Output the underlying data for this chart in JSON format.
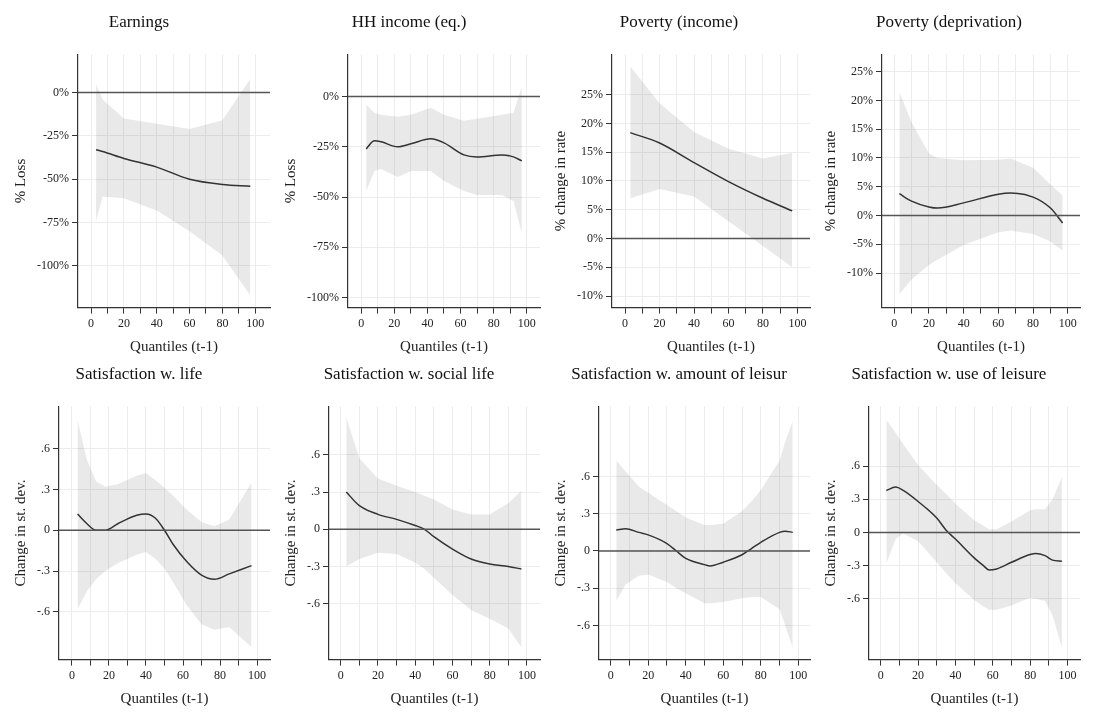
{
  "chart_data": [
    {
      "type": "line",
      "title": "Earnings",
      "xlabel": "Quantiles (t-1)",
      "ylabel": "% Loss",
      "xlim": [
        -8,
        109
      ],
      "xticks": [
        0,
        {
          "value": 10,
          "label": null
        },
        20,
        {
          "value": 30,
          "label": null
        },
        40,
        {
          "value": 50,
          "label": null
        },
        60,
        {
          "value": 70,
          "label": null
        },
        80,
        {
          "value": 90,
          "label": null
        },
        100
      ],
      "ylim": [
        -124,
        22
      ],
      "yticks": [
        {
          "value": 0,
          "label": "0%"
        },
        {
          "value": -25,
          "label": "-25%"
        },
        {
          "value": -50,
          "label": "-50%"
        },
        {
          "value": -75,
          "label": "-75%"
        },
        {
          "value": -100,
          "label": "-100%"
        }
      ],
      "grid": true,
      "marker": "none",
      "line_style": "solid",
      "ref_lines": [
        {
          "axis": "y",
          "value": 0,
          "color": "#555555"
        }
      ],
      "series": [
        {
          "color": "#333333",
          "x": [
            3,
            7,
            20,
            40,
            60,
            80,
            97
          ],
          "values": [
            -33,
            -34,
            -38,
            -43,
            -50,
            -53,
            -54
          ],
          "lower": [
            -74,
            -60,
            -61,
            -68,
            -80,
            -94,
            -117
          ],
          "upper": [
            5,
            -4,
            -15,
            -18,
            -21,
            -16,
            8
          ]
        }
      ]
    },
    {
      "type": "line",
      "title": "HH income (eq.)",
      "xlabel": "Quantiles (t-1)",
      "ylabel": "% Loss",
      "xlim": [
        -8,
        108
      ],
      "xticks": [
        0,
        {
          "value": 10,
          "label": null
        },
        20,
        {
          "value": 30,
          "label": null
        },
        40,
        {
          "value": 50,
          "label": null
        },
        60,
        {
          "value": 70,
          "label": null
        },
        80,
        {
          "value": 90,
          "label": null
        },
        100
      ],
      "ylim": [
        -105,
        21
      ],
      "yticks": [
        {
          "value": 0,
          "label": "0%"
        },
        {
          "value": -25,
          "label": "-25%"
        },
        {
          "value": -50,
          "label": "-50%"
        },
        {
          "value": -75,
          "label": "-75%"
        },
        {
          "value": -100,
          "label": "-100%"
        }
      ],
      "grid": true,
      "marker": "none",
      "line_style": "solid",
      "ref_lines": [
        {
          "axis": "y",
          "value": 0,
          "color": "#555555"
        }
      ],
      "series": [
        {
          "color": "#333333",
          "x": [
            3,
            8,
            12,
            22,
            30,
            42,
            50,
            62,
            70,
            85,
            92,
            97
          ],
          "values": [
            -26,
            -22,
            -22.5,
            -25,
            -23.5,
            -21,
            -23,
            -29,
            -30,
            -29,
            -30,
            -32
          ],
          "lower": [
            -47,
            -37,
            -36,
            -40,
            -37,
            -37,
            -42,
            -47,
            -49,
            -49,
            -52,
            -68
          ],
          "upper": [
            -4,
            -8,
            -9,
            -10,
            -9,
            -5.5,
            -9,
            -12,
            -11,
            -9,
            -8,
            5
          ]
        }
      ]
    },
    {
      "type": "line",
      "title": "Poverty (income)",
      "xlabel": "Quantiles (t-1)",
      "ylabel": "% change in rate",
      "xlim": [
        -7.6,
        107.3
      ],
      "xticks": [
        0,
        {
          "value": 10,
          "label": null
        },
        20,
        {
          "value": 30,
          "label": null
        },
        40,
        {
          "value": 50,
          "label": null
        },
        60,
        {
          "value": 70,
          "label": null
        },
        80,
        {
          "value": 90,
          "label": null
        },
        100
      ],
      "ylim": [
        -12,
        32
      ],
      "yticks": [
        {
          "value": 25,
          "label": "25%"
        },
        {
          "value": 20,
          "label": "20%"
        },
        {
          "value": 15,
          "label": "15%"
        },
        {
          "value": 10,
          "label": "10%"
        },
        {
          "value": 5,
          "label": "5%"
        },
        {
          "value": 0,
          "label": "0%"
        },
        {
          "value": -5,
          "label": "-5%"
        },
        {
          "value": -10,
          "label": "-10%"
        }
      ],
      "grid": true,
      "marker": "none",
      "line_style": "solid",
      "ref_lines": [
        {
          "axis": "y",
          "value": 0,
          "color": "#555555"
        }
      ],
      "series": [
        {
          "color": "#333333",
          "x": [
            3,
            20,
            40,
            60,
            80,
            97
          ],
          "values": [
            18.4,
            16.6,
            13.2,
            9.9,
            7,
            4.8
          ],
          "lower": [
            7,
            8.6,
            7.3,
            3,
            -1.3,
            -5
          ],
          "upper": [
            29.9,
            23.5,
            18.5,
            15.6,
            13.9,
            14.9
          ]
        }
      ]
    },
    {
      "type": "line",
      "title": "Poverty (deprivation)",
      "xlabel": "Quantiles (t-1)",
      "ylabel": "% change in rate",
      "xlim": [
        -7,
        107
      ],
      "xticks": [
        0,
        {
          "value": 10,
          "label": null
        },
        20,
        {
          "value": 30,
          "label": null
        },
        40,
        {
          "value": 50,
          "label": null
        },
        60,
        {
          "value": 70,
          "label": null
        },
        80,
        {
          "value": 90,
          "label": null
        },
        100
      ],
      "ylim": [
        -16,
        28
      ],
      "yticks": [
        {
          "value": 25,
          "label": "25%"
        },
        {
          "value": 20,
          "label": "20%"
        },
        {
          "value": 15,
          "label": "15%"
        },
        {
          "value": 10,
          "label": "10%"
        },
        {
          "value": 5,
          "label": "5%"
        },
        {
          "value": 0,
          "label": "0%"
        },
        {
          "value": -5,
          "label": "-5%"
        },
        {
          "value": -10,
          "label": "-10%"
        }
      ],
      "grid": true,
      "marker": "none",
      "line_style": "solid",
      "ref_lines": [
        {
          "axis": "y",
          "value": 0,
          "color": "#555555"
        }
      ],
      "series": [
        {
          "color": "#333333",
          "x": [
            3,
            10,
            20,
            25,
            40,
            60,
            67,
            80,
            90,
            97
          ],
          "values": [
            3.8,
            2.5,
            1.5,
            1.3,
            2.2,
            3.7,
            3.9,
            3.2,
            1.3,
            -1.3
          ],
          "lower": [
            -13.7,
            -11.1,
            -8.6,
            -7.7,
            -5.1,
            -2.9,
            -2.6,
            -3.2,
            -4.5,
            -6.1
          ],
          "upper": [
            21.5,
            16.2,
            10.8,
            10,
            9.6,
            9.7,
            9.9,
            8.3,
            5.4,
            3.5
          ]
        }
      ]
    },
    {
      "type": "line",
      "title": "Satisfaction w. life",
      "xlabel": "Quantiles (t-1)",
      "ylabel": "Change in st. dev.",
      "xlim": [
        -7,
        107
      ],
      "xticks": [
        0,
        {
          "value": 10,
          "label": null
        },
        20,
        {
          "value": 30,
          "label": null
        },
        40,
        {
          "value": 50,
          "label": null
        },
        60,
        {
          "value": 70,
          "label": null
        },
        80,
        {
          "value": 90,
          "label": null
        },
        100
      ],
      "ylim": [
        -0.95,
        0.91
      ],
      "yticks": [
        {
          "value": 0.6,
          "label": ".6"
        },
        {
          "value": 0.3,
          "label": ".3"
        },
        {
          "value": 0,
          "label": "0"
        },
        {
          "value": -0.3,
          "label": "-.3"
        },
        {
          "value": -0.6,
          "label": "-.6"
        }
      ],
      "grid": true,
      "marker": "none",
      "line_style": "solid",
      "ref_lines": [
        {
          "axis": "y",
          "value": 0,
          "color": "#555555"
        }
      ],
      "series": [
        {
          "color": "#333333",
          "x": [
            3,
            8,
            13,
            18,
            25,
            35,
            40,
            45,
            50,
            55,
            62,
            70,
            77,
            85,
            97
          ],
          "values": [
            0.12,
            0.05,
            0,
            0,
            0.05,
            0.11,
            0.12,
            0.09,
            0,
            -0.11,
            -0.23,
            -0.33,
            -0.36,
            -0.32,
            -0.26
          ],
          "lower": [
            -0.58,
            -0.45,
            -0.36,
            -0.3,
            -0.24,
            -0.18,
            -0.16,
            -0.21,
            -0.28,
            -0.39,
            -0.55,
            -0.69,
            -0.73,
            -0.71,
            -0.86
          ],
          "upper": [
            0.81,
            0.52,
            0.36,
            0.32,
            0.34,
            0.4,
            0.42,
            0.37,
            0.31,
            0.25,
            0.15,
            0.06,
            0.03,
            0.08,
            0.35
          ]
        }
      ]
    },
    {
      "type": "line",
      "title": "Satisfaction w. social life",
      "xlabel": "Quantiles (t-1)",
      "ylabel": "Change in st. dev.",
      "xlim": [
        -6.3,
        107
      ],
      "xticks": [
        0,
        {
          "value": 10,
          "label": null
        },
        20,
        {
          "value": 30,
          "label": null
        },
        40,
        {
          "value": 50,
          "label": null
        },
        60,
        {
          "value": 70,
          "label": null
        },
        80,
        {
          "value": 90,
          "label": null
        },
        100
      ],
      "ylim": [
        -1.05,
        0.99
      ],
      "yticks": [
        {
          "value": 0.6,
          "label": ".6"
        },
        {
          "value": 0.3,
          "label": ".3"
        },
        {
          "value": 0,
          "label": "0"
        },
        {
          "value": -0.3,
          "label": "-.3"
        },
        {
          "value": -0.6,
          "label": "-.6"
        }
      ],
      "grid": true,
      "marker": "none",
      "line_style": "solid",
      "ref_lines": [
        {
          "axis": "y",
          "value": 0,
          "color": "#555555"
        }
      ],
      "series": [
        {
          "color": "#333333",
          "x": [
            3,
            10,
            20,
            30,
            40,
            45,
            50,
            60,
            70,
            80,
            90,
            97
          ],
          "values": [
            0.3,
            0.19,
            0.12,
            0.08,
            0.03,
            0,
            -0.06,
            -0.16,
            -0.24,
            -0.28,
            -0.3,
            -0.32
          ],
          "lower": [
            -0.3,
            -0.24,
            -0.19,
            -0.2,
            -0.27,
            -0.32,
            -0.39,
            -0.53,
            -0.65,
            -0.72,
            -0.8,
            -0.95
          ],
          "upper": [
            0.9,
            0.57,
            0.41,
            0.35,
            0.3,
            0.27,
            0.24,
            0.16,
            0.12,
            0.12,
            0.21,
            0.31
          ]
        }
      ]
    },
    {
      "type": "line",
      "title": "Satisfaction w. amount of leisur",
      "xlabel": "Quantiles (t-1)",
      "ylabel": "Change in st. dev.",
      "xlim": [
        -6.2,
        106.2
      ],
      "xticks": [
        0,
        {
          "value": 10,
          "label": null
        },
        20,
        {
          "value": 30,
          "label": null
        },
        40,
        {
          "value": 50,
          "label": null
        },
        60,
        {
          "value": 70,
          "label": null
        },
        80,
        {
          "value": 90,
          "label": null
        },
        100
      ],
      "ylim": [
        -0.875,
        1.165
      ],
      "yticks": [
        {
          "value": 0.6,
          "label": ".6"
        },
        {
          "value": 0.3,
          "label": ".3"
        },
        {
          "value": 0,
          "label": "0"
        },
        {
          "value": -0.3,
          "label": "-.3"
        },
        {
          "value": -0.6,
          "label": "-.6"
        }
      ],
      "grid": true,
      "marker": "none",
      "line_style": "solid",
      "ref_lines": [
        {
          "axis": "y",
          "value": 0,
          "color": "#555555"
        }
      ],
      "series": [
        {
          "color": "#333333",
          "x": [
            3,
            8,
            15,
            20,
            30,
            35,
            40,
            50,
            53,
            60,
            70,
            75,
            80,
            90,
            93,
            97
          ],
          "values": [
            0.17,
            0.18,
            0.15,
            0.13,
            0.06,
            0,
            -0.06,
            -0.11,
            -0.12,
            -0.09,
            -0.03,
            0.02,
            0.07,
            0.15,
            0.16,
            0.15
          ],
          "lower": [
            -0.4,
            -0.27,
            -0.2,
            -0.19,
            -0.25,
            -0.3,
            -0.34,
            -0.42,
            -0.42,
            -0.41,
            -0.38,
            -0.37,
            -0.37,
            -0.47,
            -0.6,
            -0.78
          ],
          "upper": [
            0.73,
            0.64,
            0.52,
            0.47,
            0.37,
            0.32,
            0.27,
            0.21,
            0.21,
            0.22,
            0.32,
            0.4,
            0.49,
            0.73,
            0.88,
            1.05
          ]
        }
      ]
    },
    {
      "type": "line",
      "title": "Satisfaction w. use of leisure",
      "xlabel": "Quantiles (t-1)",
      "ylabel": "Change in st. dev.",
      "xlim": [
        -6.3,
        106.7
      ],
      "xticks": [
        0,
        {
          "value": 10,
          "label": null
        },
        20,
        {
          "value": 30,
          "label": null
        },
        40,
        {
          "value": 50,
          "label": null
        },
        60,
        {
          "value": 70,
          "label": null
        },
        80,
        {
          "value": 90,
          "label": null
        },
        100
      ],
      "ylim": [
        -1.15,
        1.14
      ],
      "yticks": [
        {
          "value": 0.6,
          "label": ".6"
        },
        {
          "value": 0.3,
          "label": ".3"
        },
        {
          "value": 0,
          "label": "0"
        },
        {
          "value": -0.3,
          "label": "-.3"
        },
        {
          "value": -0.6,
          "label": "-.6"
        }
      ],
      "grid": true,
      "marker": "none",
      "line_style": "solid",
      "ref_lines": [
        {
          "axis": "y",
          "value": 0,
          "color": "#555555"
        }
      ],
      "series": [
        {
          "color": "#333333",
          "x": [
            3,
            8,
            12,
            20,
            30,
            35,
            40,
            50,
            55,
            58,
            62,
            70,
            80,
            83,
            88,
            92,
            97
          ],
          "values": [
            0.38,
            0.41,
            0.38,
            0.28,
            0.13,
            0.02,
            -0.06,
            -0.23,
            -0.3,
            -0.34,
            -0.33,
            -0.27,
            -0.2,
            -0.19,
            -0.21,
            -0.25,
            -0.26
          ],
          "lower": [
            -0.28,
            -0.06,
            -0.01,
            -0.08,
            -0.27,
            -0.37,
            -0.46,
            -0.61,
            -0.67,
            -0.7,
            -0.7,
            -0.66,
            -0.59,
            -0.6,
            -0.62,
            -0.75,
            -1.04
          ],
          "upper": [
            1.02,
            0.9,
            0.8,
            0.61,
            0.43,
            0.35,
            0.26,
            0.11,
            0.06,
            0.03,
            0.03,
            0.1,
            0.2,
            0.21,
            0.21,
            0.3,
            0.5
          ]
        }
      ]
    }
  ]
}
